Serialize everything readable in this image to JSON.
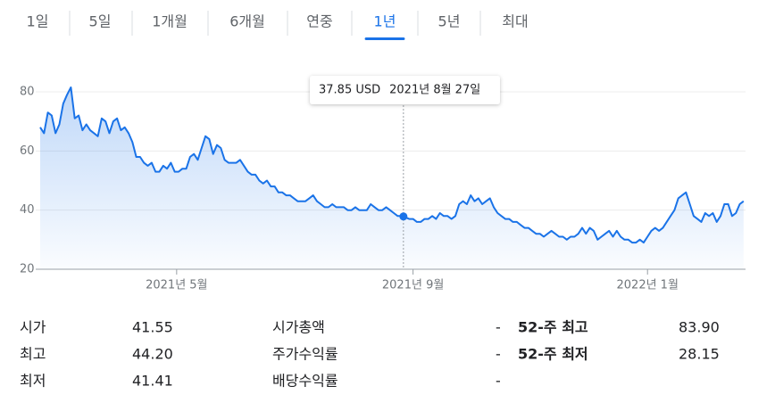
{
  "tabs": {
    "items": [
      "1일",
      "5일",
      "1개월",
      "6개월",
      "연중",
      "1년",
      "5년",
      "최대"
    ],
    "selected": 5
  },
  "chart_data": {
    "type": "line",
    "x": [
      0,
      2,
      4,
      6,
      8,
      10,
      12,
      14,
      16,
      18,
      20,
      22,
      24,
      26,
      28,
      30,
      32,
      34,
      36,
      38,
      40,
      42,
      44,
      46,
      48,
      50,
      52,
      54,
      56,
      58,
      60,
      62,
      64,
      66,
      68,
      70,
      72,
      74,
      76,
      78,
      80,
      82,
      84,
      86,
      88,
      90,
      92,
      94,
      96,
      98,
      100,
      102,
      104,
      106,
      108,
      110,
      112,
      114,
      116,
      118,
      120,
      122,
      124,
      126,
      128,
      130,
      132,
      134,
      136,
      138,
      140,
      142,
      144,
      146,
      148,
      150,
      152,
      154,
      156,
      158,
      160,
      162,
      164,
      166,
      168,
      170,
      172,
      174,
      176,
      178,
      180,
      182,
      184,
      186,
      188,
      189,
      192,
      194,
      196,
      198,
      200,
      202,
      204,
      206,
      208,
      210,
      212,
      214,
      216,
      218,
      220,
      222,
      224,
      226,
      228,
      230,
      232,
      234,
      236,
      238,
      240,
      242,
      244,
      246,
      248,
      250,
      252,
      254,
      256,
      258,
      260,
      262,
      264,
      266,
      268,
      270,
      272,
      274,
      276,
      278,
      280,
      282,
      284,
      286,
      288,
      290,
      292,
      294,
      296,
      298,
      300,
      302,
      304,
      306,
      308,
      310,
      312,
      314,
      316,
      318,
      320,
      322,
      324,
      326,
      328,
      330,
      332,
      334,
      336,
      338,
      340,
      342,
      344,
      346,
      348,
      350,
      352,
      354,
      356,
      358,
      360,
      362,
      364,
      366
    ],
    "series": [
      {
        "color": "#1a73e8",
        "values": [
          68,
          66,
          73,
          72,
          66,
          69,
          76,
          79,
          81.5,
          71,
          72,
          67,
          69,
          67,
          66,
          65,
          71,
          70,
          66,
          70,
          71,
          67,
          68,
          66,
          63,
          58,
          58,
          56,
          55,
          56,
          53,
          53,
          55,
          54,
          56,
          53,
          53,
          54,
          54,
          58,
          59,
          57,
          61,
          65,
          64,
          59,
          62,
          61,
          57,
          56,
          56,
          56,
          57,
          55,
          53,
          52,
          52,
          50,
          49,
          50,
          48,
          48,
          46,
          46,
          45,
          45,
          44,
          43,
          43,
          43,
          44,
          45,
          43,
          42,
          41,
          41,
          42,
          41,
          41,
          41,
          40,
          40,
          41,
          40,
          40,
          40,
          42,
          41,
          40,
          40,
          41,
          40,
          39,
          38,
          38,
          37.85,
          37,
          37,
          36,
          36,
          37,
          37,
          38,
          37,
          39,
          38,
          38,
          37,
          38,
          42,
          43,
          42,
          45,
          43,
          44,
          42,
          43,
          44,
          41,
          39,
          38,
          37,
          37,
          36,
          36,
          35,
          34,
          34,
          33,
          32,
          32,
          31,
          32,
          33,
          32,
          31,
          31,
          30,
          31,
          31,
          32,
          34,
          32,
          34,
          33,
          30,
          31,
          32,
          33,
          31,
          33,
          31,
          30,
          30,
          29,
          29,
          30,
          29,
          31,
          33,
          34,
          33,
          34,
          36,
          38,
          40,
          44,
          45,
          46,
          42,
          38,
          37,
          36,
          39,
          38,
          39,
          36,
          38,
          42,
          42,
          38,
          39,
          42,
          43
        ]
      }
    ],
    "xlim": [
      0,
      367
    ],
    "xticks": [
      {
        "value": 71,
        "label": "2021년 5월"
      },
      {
        "value": 194,
        "label": "2021년 9월"
      },
      {
        "value": 316,
        "label": "2022년 1월"
      }
    ],
    "ylim": [
      20,
      80
    ],
    "yticks": [
      20,
      40,
      60,
      80
    ],
    "grid": true,
    "tooltip": {
      "x": 189,
      "label": "37.85 USD",
      "date": "2021년 8월 27일"
    }
  },
  "stats": {
    "columns": [
      [
        [
          "시가",
          "41.55"
        ],
        [
          "최고",
          "44.20"
        ],
        [
          "최저",
          "41.41"
        ]
      ],
      [
        [
          "시가총액",
          "-"
        ],
        [
          "주가수익률",
          "-"
        ],
        [
          "배당수익률",
          "-"
        ]
      ],
      [
        [
          "52-주 최고",
          "83.90"
        ],
        [
          "52-주 최저",
          "28.15"
        ]
      ]
    ]
  }
}
